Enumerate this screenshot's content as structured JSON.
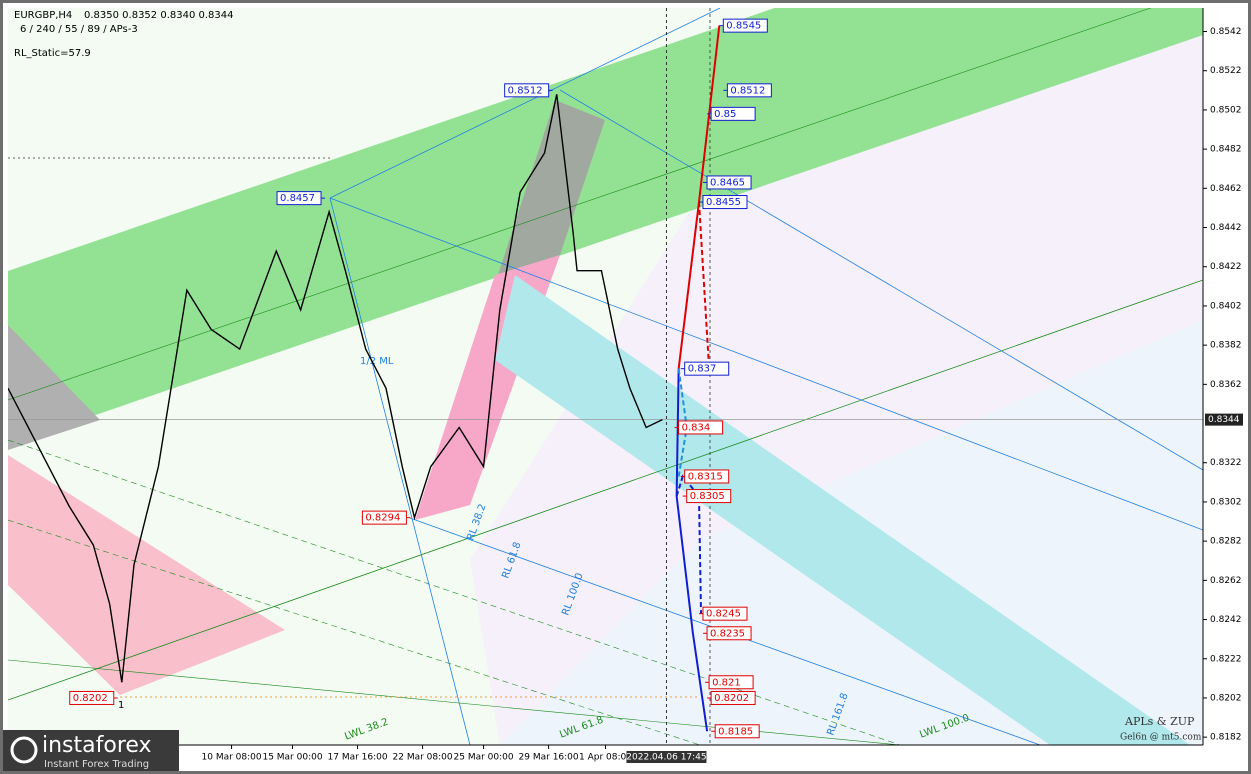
{
  "header": {
    "symbol": "EURGBP,H4",
    "ohlc": "0.8350 0.8352 0.8340 0.8344",
    "settings": "6 / 240 / 55 / 89 / APs-3",
    "indicator": "RL_Static=57.9"
  },
  "chart_data": {
    "type": "line",
    "xlim": [
      0,
      294
    ],
    "ylim": [
      0.8178,
      0.8554
    ],
    "yticks": [
      0.8542,
      0.8522,
      0.8502,
      0.8482,
      0.8462,
      0.8442,
      0.8422,
      0.8402,
      0.8382,
      0.8362,
      0.8322,
      0.8302,
      0.8282,
      0.8262,
      0.8242,
      0.8222,
      0.8202,
      0.8182
    ],
    "xticks": [
      {
        "value": 55,
        "label": "10 Mar 08:00"
      },
      {
        "value": 70,
        "label": "15 Mar 00:00"
      },
      {
        "value": 86,
        "label": "17 Mar 16:00"
      },
      {
        "value": 102,
        "label": "22 Mar 08:00"
      },
      {
        "value": 117,
        "label": "25 Mar 00:00"
      },
      {
        "value": 133,
        "label": "29 Mar 16:00"
      },
      {
        "value": 147,
        "label": "1 Apr 08:00"
      }
    ],
    "cursor": {
      "value": 162,
      "label": "2022.04.06 17:45"
    },
    "current_price": 0.8344,
    "series": [
      {
        "color": "#000000",
        "x": [
          0,
          5,
          10,
          15,
          21,
          25,
          28,
          31,
          37,
          44,
          50,
          57,
          66,
          72,
          79,
          83,
          88,
          93,
          97,
          100,
          104,
          111,
          117,
          121,
          126,
          132,
          135,
          139,
          140,
          146,
          150,
          153,
          157,
          161
        ],
        "values": [
          0.836,
          0.834,
          0.832,
          0.83,
          0.828,
          0.825,
          0.821,
          0.827,
          0.832,
          0.841,
          0.839,
          0.838,
          0.843,
          0.84,
          0.845,
          0.842,
          0.838,
          0.836,
          0.832,
          0.8294,
          0.832,
          0.834,
          0.832,
          0.84,
          0.846,
          0.848,
          0.851,
          0.844,
          0.842,
          0.842,
          0.838,
          0.836,
          0.834,
          0.8344
        ]
      }
    ],
    "forecasts": [
      {
        "color": "#e00000",
        "dashed": false,
        "x": [
          165,
          170,
          175
        ],
        "values": [
          0.837,
          0.8455,
          0.8545
        ]
      },
      {
        "color": "#e00000",
        "dashed": true,
        "x": [
          170,
          172.5
        ],
        "values": [
          0.8455,
          0.837
        ]
      },
      {
        "color": "#1020d0",
        "dashed": false,
        "x": [
          165,
          164.5,
          168.5,
          172
        ],
        "values": [
          0.837,
          0.8305,
          0.8235,
          0.8185
        ]
      },
      {
        "color": "#1020d0",
        "dashed": true,
        "x": [
          164.5,
          166,
          170,
          170.5
        ],
        "values": [
          0.8305,
          0.8315,
          0.8305,
          0.8245
        ]
      },
      {
        "color": "#2090e0",
        "dashed": true,
        "x": [
          165,
          167,
          165
        ],
        "values": [
          0.837,
          0.834,
          0.8315
        ]
      }
    ],
    "levels": [
      {
        "x": 175,
        "value": 0.8545,
        "color": "#1020d0",
        "anchor": "right"
      },
      {
        "x": 176,
        "value": 0.8512,
        "color": "#1020d0",
        "anchor": "right"
      },
      {
        "x": 172,
        "value": 0.85,
        "color": "#1020d0",
        "anchor": "right"
      },
      {
        "x": 171,
        "value": 0.8465,
        "color": "#1020d0",
        "anchor": "right"
      },
      {
        "x": 170,
        "value": 0.8455,
        "color": "#1020d0",
        "anchor": "right"
      },
      {
        "x": 165.5,
        "value": 0.837,
        "color": "#1020d0",
        "anchor": "right"
      },
      {
        "x": 164,
        "value": 0.834,
        "color": "#e00000",
        "anchor": "right"
      },
      {
        "x": 165.5,
        "value": 0.8315,
        "color": "#e00000",
        "anchor": "right"
      },
      {
        "x": 166,
        "value": 0.8305,
        "color": "#e00000",
        "anchor": "right"
      },
      {
        "x": 170,
        "value": 0.8245,
        "color": "#e00000",
        "anchor": "right"
      },
      {
        "x": 171,
        "value": 0.8235,
        "color": "#e00000",
        "anchor": "right"
      },
      {
        "x": 171.5,
        "value": 0.821,
        "color": "#e00000",
        "anchor": "right"
      },
      {
        "x": 172,
        "value": 0.8202,
        "color": "#e00000",
        "anchor": "right"
      },
      {
        "x": 173,
        "value": 0.8185,
        "color": "#e00000",
        "anchor": "right"
      },
      {
        "x": 78,
        "value": 0.8457,
        "color": "#1020d0",
        "anchor": "left"
      },
      {
        "x": 134,
        "value": 0.8512,
        "color": "#1020d0",
        "anchor": "left"
      },
      {
        "x": 99,
        "value": 0.8294,
        "color": "#e00000",
        "anchor": "left"
      },
      {
        "x": 27,
        "value": 0.8202,
        "color": "#e00000",
        "anchor": "left"
      }
    ]
  },
  "annotations": {
    "ml": "1/2 ML",
    "rl382": "RL 38.2",
    "rl618": "RL 61.8",
    "rl100": "RL 100.0",
    "rl1618": "RL 161.8",
    "lwl382": "LWL 38.2",
    "lwl618": "LWL 61.8",
    "lwl100": "LWL 100.0",
    "pivot": "1",
    "credit": "APLs & ZUP",
    "site": "Gel6n @ mt5.com"
  },
  "logo": {
    "name": "instaforex",
    "tagline": "Instant Forex Trading"
  }
}
